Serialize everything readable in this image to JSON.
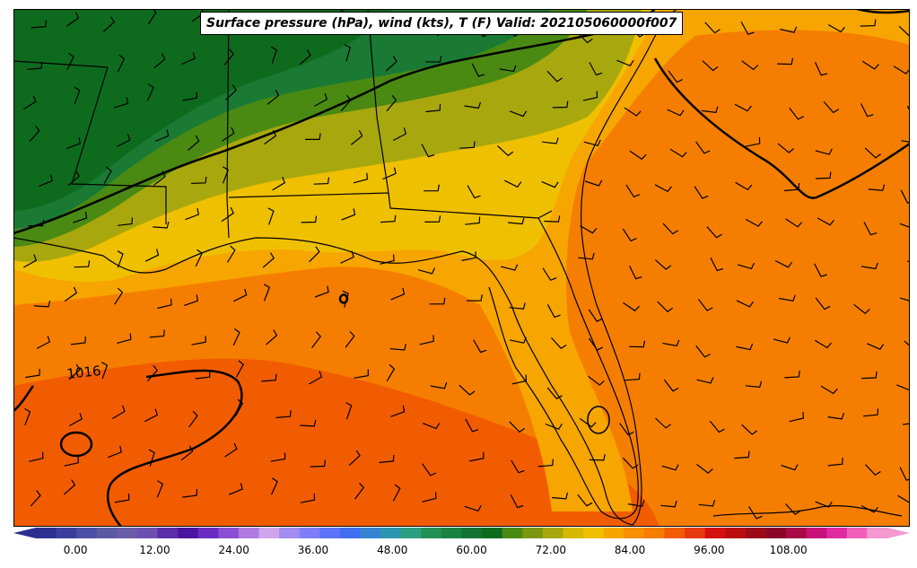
{
  "title": "Surface pressure (hPa), wind (kts), T (F) Valid: 202105060000f007",
  "map": {
    "region": "Southeastern United States and Gulf of Mexico",
    "isobar_label": "1016",
    "fill_colors": {
      "cold": "#0e6b1e",
      "green": "#2f7d1c",
      "olive": "#9a9a10",
      "yellow": "#efc000",
      "light_orange": "#f7a500",
      "orange": "#f57e00",
      "dark_orange": "#f25c00"
    }
  },
  "colorbar": {
    "tick_labels": [
      "0.00",
      "12.00",
      "24.00",
      "36.00",
      "48.00",
      "60.00",
      "72.00",
      "84.00",
      "96.00",
      "108.00"
    ],
    "min": -6,
    "max": 123,
    "step": 3,
    "colors": [
      "#2b2f8f",
      "#3a3f9e",
      "#4b4fa6",
      "#5a5aa0",
      "#6a5ca8",
      "#6c4fb0",
      "#5b2da8",
      "#4a14a0",
      "#6a2cc0",
      "#8a4ed2",
      "#b07ae2",
      "#cfa6ee",
      "#a28cf0",
      "#7f7ef8",
      "#5b74f8",
      "#3f6ef0",
      "#3583d0",
      "#2c96b0",
      "#2aa080",
      "#239055",
      "#1a8240",
      "#127335",
      "#0e6b1e",
      "#4a8a12",
      "#7a9810",
      "#a8a80e",
      "#d8b800",
      "#efc000",
      "#f7a500",
      "#f78f00",
      "#f57e00",
      "#f25c00",
      "#e83a10",
      "#d41010",
      "#b80c10",
      "#9c0a18",
      "#8a0628",
      "#a80a48",
      "#c8127a",
      "#e02aa0",
      "#f060b8",
      "#f598d0"
    ]
  }
}
